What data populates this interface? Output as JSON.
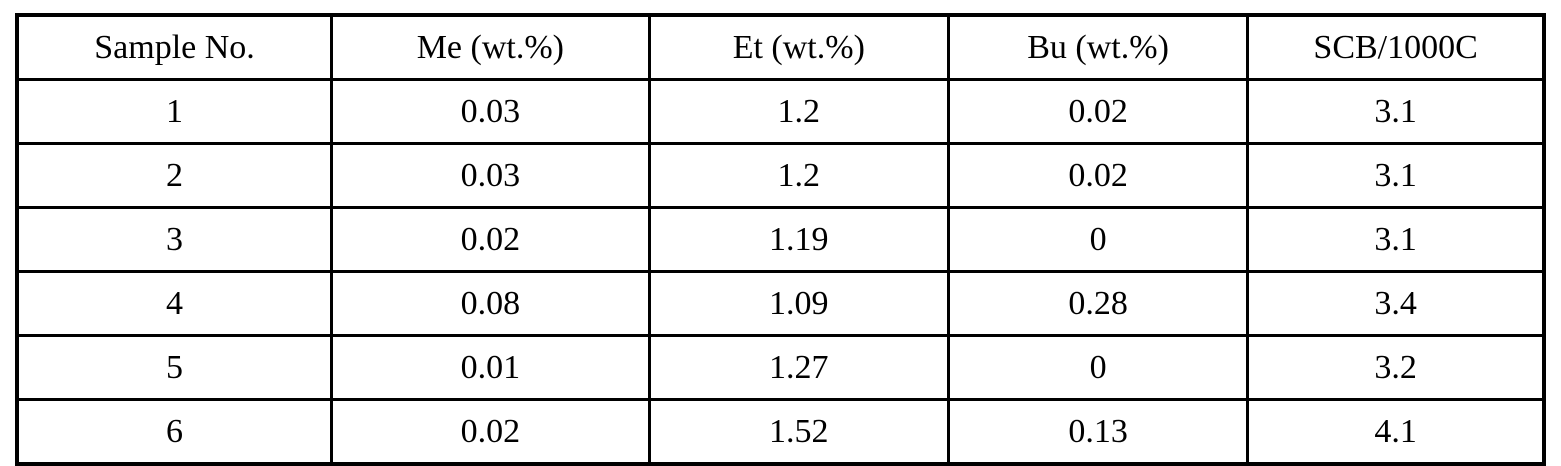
{
  "colors": {
    "border": "#000000",
    "background": "#ffffff",
    "text": "#000000"
  },
  "table": {
    "columns": {
      "sample": "Sample No.",
      "me": "Me (wt.%)",
      "et": "Et (wt.%)",
      "bu": "Bu (wt.%)",
      "scb": "SCB/1000C"
    },
    "rows": [
      {
        "sample": "1",
        "me": "0.03",
        "et": "1.2",
        "bu": "0.02",
        "scb": "3.1"
      },
      {
        "sample": "2",
        "me": "0.03",
        "et": "1.2",
        "bu": "0.02",
        "scb": "3.1"
      },
      {
        "sample": "3",
        "me": "0.02",
        "et": "1.19",
        "bu": "0",
        "scb": "3.1"
      },
      {
        "sample": "4",
        "me": "0.08",
        "et": "1.09",
        "bu": "0.28",
        "scb": "3.4"
      },
      {
        "sample": "5",
        "me": "0.01",
        "et": "1.27",
        "bu": "0",
        "scb": "3.2"
      },
      {
        "sample": "6",
        "me": "0.02",
        "et": "1.52",
        "bu": "0.13",
        "scb": "4.1"
      }
    ]
  },
  "chart_data": {
    "type": "table",
    "title": "",
    "columns": [
      "Sample No.",
      "Me (wt.%)",
      "Et (wt.%)",
      "Bu (wt.%)",
      "SCB/1000C"
    ],
    "rows": [
      [
        "1",
        "0.03",
        "1.2",
        "0.02",
        "3.1"
      ],
      [
        "2",
        "0.03",
        "1.2",
        "0.02",
        "3.1"
      ],
      [
        "3",
        "0.02",
        "1.19",
        "0",
        "3.1"
      ],
      [
        "4",
        "0.08",
        "1.09",
        "0.28",
        "3.4"
      ],
      [
        "5",
        "0.01",
        "1.27",
        "0",
        "3.2"
      ],
      [
        "6",
        "0.02",
        "1.52",
        "0.13",
        "4.1"
      ]
    ]
  }
}
